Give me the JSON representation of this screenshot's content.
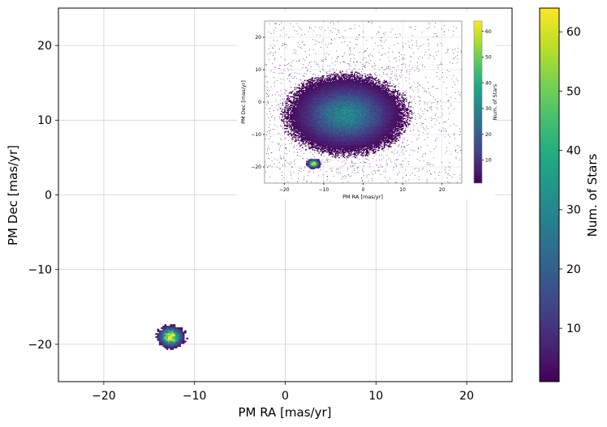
{
  "chart_data": {
    "type": "heatmap",
    "xlabel": "PM RA [mas/yr]",
    "ylabel": "PM Dec [mas/yr]",
    "xlim": [
      -25,
      25
    ],
    "ylim": [
      -25,
      25
    ],
    "xticks": [
      -20,
      -10,
      0,
      10,
      20
    ],
    "yticks": [
      -20,
      -10,
      0,
      10,
      20
    ],
    "grid": true,
    "colormap": "viridis",
    "colorbar": {
      "label": "Num. of Stars",
      "range": [
        1,
        64
      ],
      "ticks": [
        10,
        20,
        30,
        40,
        50,
        60
      ]
    },
    "clusters": [
      {
        "name": "",
        "center": [
          -12.7,
          -19.1
        ],
        "spread": [
          0.7,
          0.7
        ],
        "peak": 64
      }
    ],
    "inset": {
      "xlabel": "PM RA [mas/yr]",
      "ylabel": "PM Dec [mas/yr]",
      "xlim": [
        -25,
        25
      ],
      "ylim": [
        -25,
        25
      ],
      "xticks": [
        -20,
        -10,
        0,
        10,
        20
      ],
      "yticks": [
        -20,
        -10,
        0,
        10,
        20
      ],
      "grid": true,
      "colorbar": {
        "label": "Num. of Stars",
        "range": [
          1,
          64
        ],
        "ticks": [
          10,
          20,
          30,
          40,
          50,
          60
        ]
      },
      "clusters": [
        {
          "name": "",
          "center": [
            -4.5,
            -4.0
          ],
          "spread": [
            6.5,
            5.2
          ],
          "peak": 30
        },
        {
          "name": "",
          "center": [
            -12.7,
            -19.1
          ],
          "spread": [
            0.8,
            0.7
          ],
          "peak": 64
        }
      ]
    }
  }
}
